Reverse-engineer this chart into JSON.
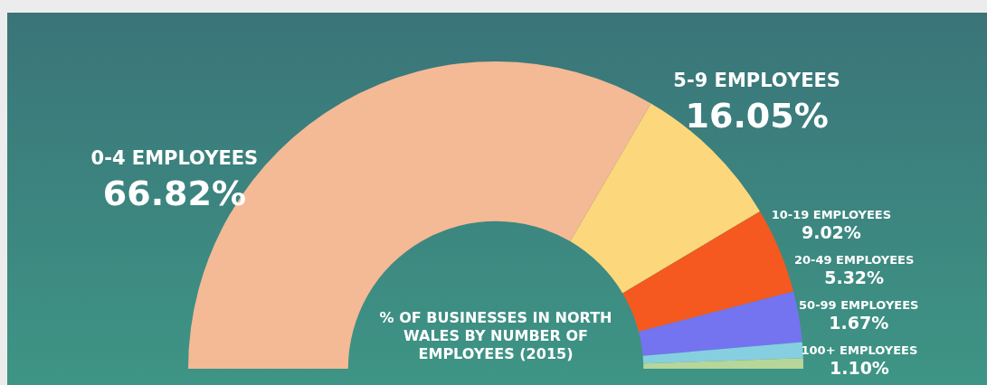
{
  "chart_data": {
    "type": "donut",
    "title": "% OF BUSINESSES IN NORTH WALES BY NUMBER OF EMPLOYEES (2015)",
    "categories": [
      "0-4 EMPLOYEES",
      "5-9 EMPLOYEES",
      "10-19 EMPLOYEES",
      "20-49 EMPLOYEES",
      "50-99 EMPLOYEES",
      "100+ EMPLOYEES"
    ],
    "values": [
      66.82,
      16.05,
      9.02,
      5.32,
      1.67,
      1.1
    ],
    "value_labels": [
      "66.82%",
      "16.05%",
      "9.02%",
      "5.32%",
      "1.67%",
      "1.10%"
    ],
    "colors": [
      "#f4b995",
      "#fdd77b",
      "#f5591f",
      "#7474f0",
      "#86cfe0",
      "#b6d69a"
    ],
    "legend": false
  }
}
